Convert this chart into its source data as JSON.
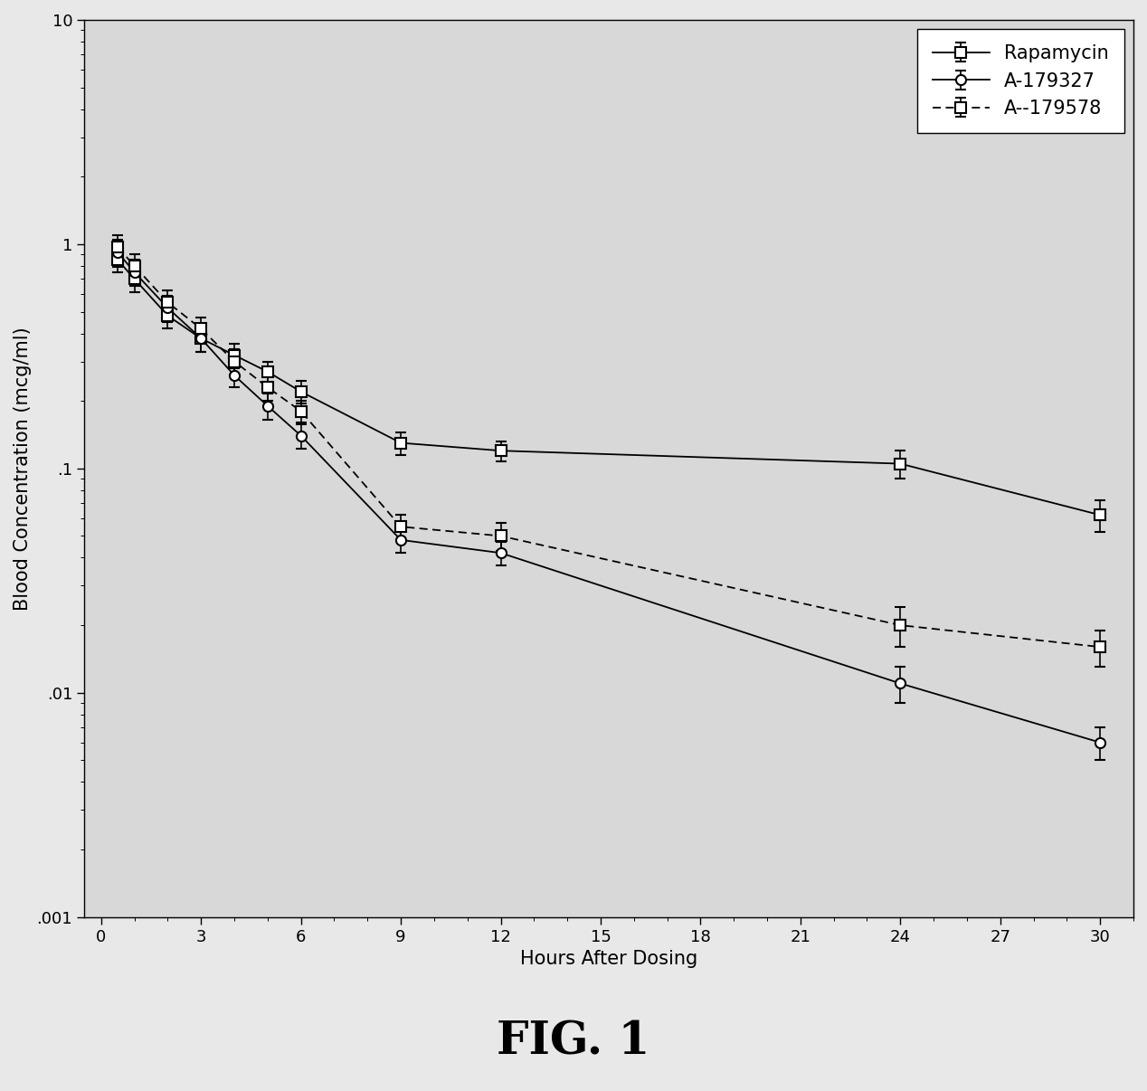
{
  "title": "FIG. 1",
  "xlabel": "Hours After Dosing",
  "ylabel": "Blood Concentration (mcg/ml)",
  "xlim": [
    -0.5,
    31
  ],
  "ylim_log": [
    0.001,
    10
  ],
  "xticks": [
    0,
    3,
    6,
    9,
    12,
    15,
    18,
    21,
    24,
    27,
    30
  ],
  "ytick_positions": [
    0.001,
    0.01,
    0.1,
    1,
    10
  ],
  "ytick_labels": [
    ".001",
    ".01",
    ".1",
    "1",
    "10"
  ],
  "series": {
    "Rapamycin": {
      "x": [
        0.5,
        1,
        2,
        3,
        4,
        5,
        6,
        9,
        12,
        24,
        30
      ],
      "y": [
        0.85,
        0.7,
        0.48,
        0.38,
        0.32,
        0.27,
        0.22,
        0.13,
        0.12,
        0.105,
        0.062
      ],
      "yerr": [
        0.1,
        0.09,
        0.06,
        0.05,
        0.04,
        0.03,
        0.025,
        0.015,
        0.012,
        0.015,
        0.01
      ],
      "linestyle": "-",
      "marker": "s",
      "label": "Rapamycin"
    },
    "A179327": {
      "x": [
        0.5,
        1,
        2,
        3,
        4,
        5,
        6,
        9,
        12,
        24,
        30
      ],
      "y": [
        0.92,
        0.75,
        0.52,
        0.38,
        0.26,
        0.19,
        0.14,
        0.048,
        0.042,
        0.011,
        0.006
      ],
      "yerr": [
        0.13,
        0.1,
        0.07,
        0.05,
        0.03,
        0.025,
        0.018,
        0.006,
        0.005,
        0.002,
        0.001
      ],
      "linestyle": "-",
      "marker": "o",
      "label": "A-179327"
    },
    "A179578": {
      "x": [
        0.5,
        1,
        2,
        3,
        4,
        5,
        6,
        9,
        12,
        24,
        30
      ],
      "y": [
        0.97,
        0.8,
        0.55,
        0.42,
        0.3,
        0.23,
        0.18,
        0.055,
        0.05,
        0.02,
        0.016
      ],
      "yerr": [
        0.13,
        0.1,
        0.07,
        0.05,
        0.04,
        0.03,
        0.02,
        0.007,
        0.007,
        0.004,
        0.003
      ],
      "linestyle": "--",
      "marker": "s",
      "label": "A--179578"
    }
  },
  "background_color": "#e8e8e8",
  "plot_bg_color": "#d8d8d8",
  "legend_fontsize": 15,
  "axis_label_fontsize": 15,
  "tick_fontsize": 13,
  "title_fontsize": 36
}
